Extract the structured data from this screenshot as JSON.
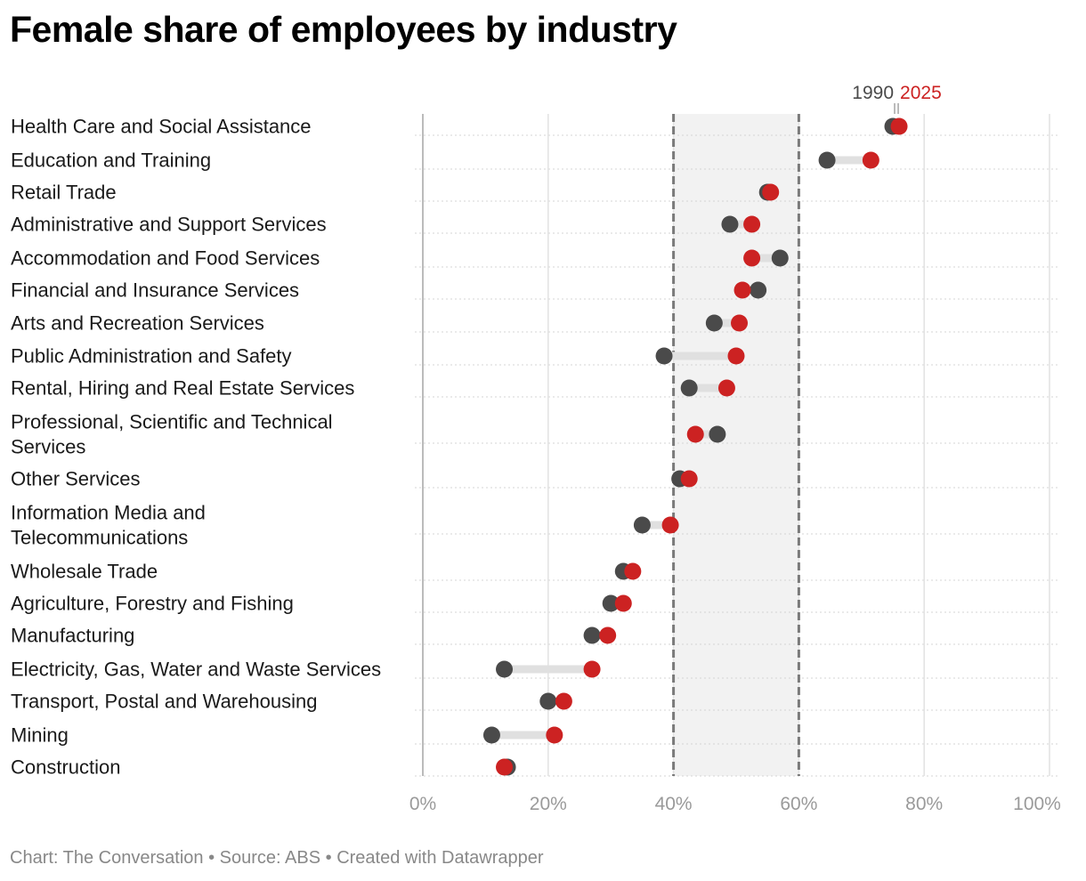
{
  "title": "Female share of employees by industry",
  "footer": {
    "chart": "Chart: The Conversation",
    "source": "Source: ABS",
    "created": "Created with Datawrapper",
    "separator": " • "
  },
  "colors": {
    "y1990": "#4a4a4a",
    "y2025": "#cc2222",
    "band": "#f2f2f2",
    "connector": "#e0e0e0"
  },
  "chart_data": {
    "type": "dumbbell",
    "title": "Female share of employees by industry",
    "xlabel": "",
    "ylabel": "",
    "xlim": [
      0,
      100
    ],
    "x_ticks": [
      "0%",
      "20%",
      "40%",
      "60%",
      "80%",
      "100%"
    ],
    "x_tick_values": [
      0,
      20,
      40,
      60,
      80,
      100
    ],
    "highlight_band": [
      40,
      60
    ],
    "legend": [
      {
        "name": "1990",
        "color": "#4a4a4a"
      },
      {
        "name": "2025",
        "color": "#cc2222"
      }
    ],
    "categories": [
      {
        "lines": [
          "Health Care and Social Assistance"
        ],
        "y1990": 75,
        "y2025": 76
      },
      {
        "lines": [
          "Education and Training"
        ],
        "y1990": 64.5,
        "y2025": 71.5
      },
      {
        "lines": [
          "Retail Trade"
        ],
        "y1990": 55,
        "y2025": 55.5
      },
      {
        "lines": [
          "Administrative and Support Services"
        ],
        "y1990": 49,
        "y2025": 52.5
      },
      {
        "lines": [
          "Accommodation and Food Services"
        ],
        "y1990": 57,
        "y2025": 52.5
      },
      {
        "lines": [
          "Financial and Insurance Services"
        ],
        "y1990": 53.5,
        "y2025": 51
      },
      {
        "lines": [
          "Arts and Recreation Services"
        ],
        "y1990": 46.5,
        "y2025": 50.5
      },
      {
        "lines": [
          "Public Administration and Safety"
        ],
        "y1990": 38.5,
        "y2025": 50
      },
      {
        "lines": [
          "Rental, Hiring and Real Estate Services"
        ],
        "y1990": 42.5,
        "y2025": 48.5
      },
      {
        "lines": [
          "Professional, Scientific and Technical",
          "Services"
        ],
        "y1990": 47,
        "y2025": 43.5
      },
      {
        "lines": [
          "Other Services"
        ],
        "y1990": 41,
        "y2025": 42.5
      },
      {
        "lines": [
          "Information Media and",
          "Telecommunications"
        ],
        "y1990": 35,
        "y2025": 39.5
      },
      {
        "lines": [
          "Wholesale Trade"
        ],
        "y1990": 32,
        "y2025": 33.5
      },
      {
        "lines": [
          "Agriculture, Forestry and Fishing"
        ],
        "y1990": 30,
        "y2025": 32
      },
      {
        "lines": [
          "Manufacturing"
        ],
        "y1990": 27,
        "y2025": 29.5
      },
      {
        "lines": [
          "Electricity, Gas, Water and Waste Services"
        ],
        "y1990": 13,
        "y2025": 27
      },
      {
        "lines": [
          "Transport, Postal and Warehousing"
        ],
        "y1990": 20,
        "y2025": 22.5
      },
      {
        "lines": [
          "Mining"
        ],
        "y1990": 11,
        "y2025": 21
      },
      {
        "lines": [
          "Construction"
        ],
        "y1990": 13.5,
        "y2025": 13
      }
    ]
  }
}
